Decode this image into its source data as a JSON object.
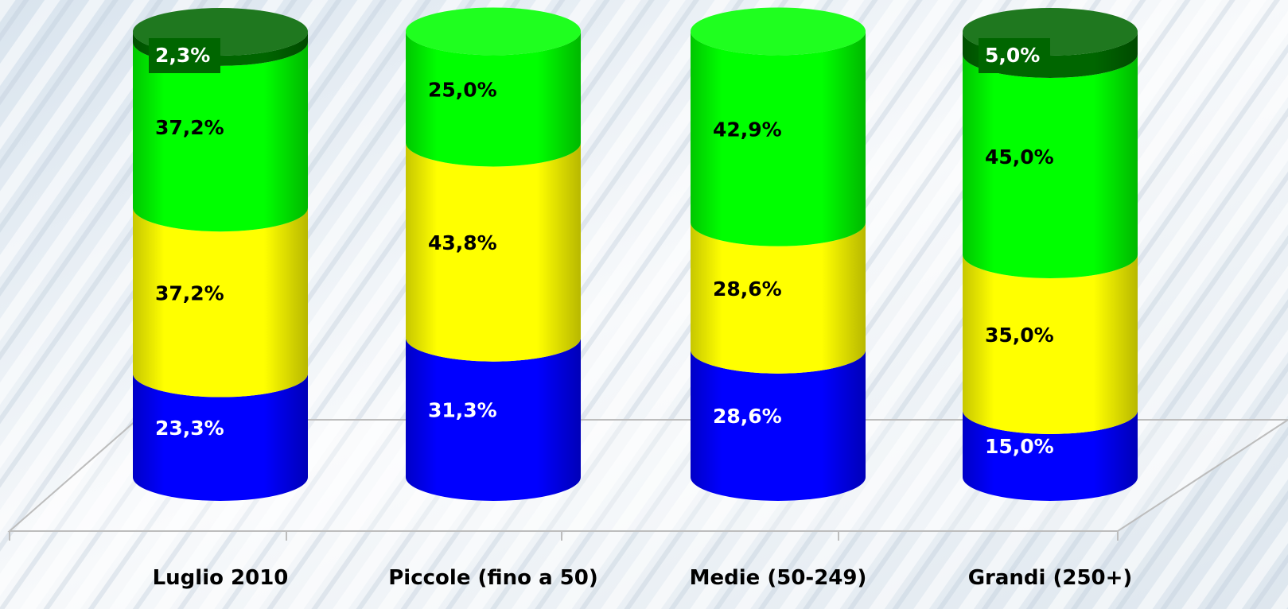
{
  "chart_data": {
    "type": "bar",
    "stacked": true,
    "style": "3d-cylinder",
    "title": "",
    "xlabel": "",
    "ylabel": "",
    "ylim": [
      0,
      100
    ],
    "grid": false,
    "legend": "none",
    "categories": [
      "Luglio 2010",
      "Piccole (fino a 50)",
      "Medie (50-249)",
      "Grandi (250+)"
    ],
    "series": [
      {
        "color": "#0000ff",
        "label_color": "#ffffff",
        "values": [
          23.3,
          31.3,
          28.6,
          15.0
        ],
        "labels": [
          "23,3%",
          "31,3%",
          "28,6%",
          "15,0%"
        ]
      },
      {
        "color": "#ffff00",
        "label_color": "#000000",
        "values": [
          37.2,
          43.8,
          28.6,
          35.0
        ],
        "labels": [
          "37,2%",
          "43,8%",
          "28,6%",
          "35,0%"
        ]
      },
      {
        "color": "#00ff00",
        "label_color": "#000000",
        "values": [
          37.2,
          25.0,
          42.9,
          45.0
        ],
        "labels": [
          "37,2%",
          "25,0%",
          "42,9%",
          "45,0%"
        ]
      },
      {
        "color": "#006600",
        "label_color": "#ffffff",
        "values": [
          2.3,
          0,
          0,
          5.0
        ],
        "labels": [
          "2,3%",
          "",
          "",
          "5,0%"
        ]
      }
    ]
  }
}
